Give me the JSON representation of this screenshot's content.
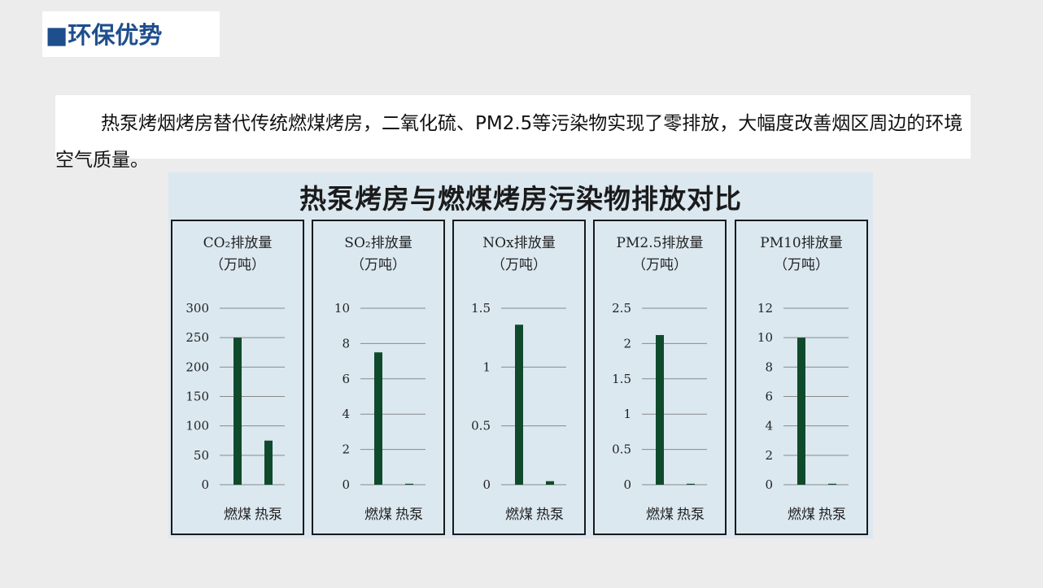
{
  "header": {
    "title": "■环保优势"
  },
  "intro": {
    "text": "热泵烤烟烤房替代传统燃煤烤房，二氧化硫、PM2.5等污染物实现了零排放，大幅度改善烟区周边的环境空气质量。"
  },
  "colors": {
    "bar": "#0f4a2c",
    "panel_bg": "#dbe8f0",
    "title_blue": "#1f4e8c"
  },
  "chart_data": [
    {
      "type": "bar",
      "title": "热泵烤房与燃煤烤房污染物排放对比",
      "panel_title": "CO₂排放量",
      "unit": "（万吨）",
      "categories": [
        "燃煤",
        "热泵"
      ],
      "values": [
        250,
        75
      ],
      "ylim": [
        0,
        300
      ],
      "yticks": [
        "0",
        "50",
        "100",
        "150",
        "200",
        "250",
        "300"
      ],
      "ytick_values": [
        0,
        50,
        100,
        150,
        200,
        250,
        300
      ]
    },
    {
      "type": "bar",
      "panel_title": "SO₂排放量",
      "unit": "（万吨）",
      "categories": [
        "燃煤",
        "热泵"
      ],
      "values": [
        7.5,
        0
      ],
      "ylim": [
        0,
        10
      ],
      "yticks": [
        "0",
        "2",
        "4",
        "6",
        "8",
        "10"
      ],
      "ytick_values": [
        0,
        2,
        4,
        6,
        8,
        10
      ]
    },
    {
      "type": "bar",
      "panel_title": "NOx排放量",
      "unit": "（万吨）",
      "categories": [
        "燃煤",
        "热泵"
      ],
      "values": [
        1.36,
        0.03
      ],
      "ylim": [
        0,
        1.5
      ],
      "yticks": [
        "0",
        "0.5",
        "1",
        "1.5"
      ],
      "ytick_values": [
        0,
        0.5,
        1,
        1.5
      ]
    },
    {
      "type": "bar",
      "panel_title": "PM2.5排放量",
      "unit": "（万吨）",
      "categories": [
        "燃煤",
        "热泵"
      ],
      "values": [
        2.12,
        0
      ],
      "ylim": [
        0,
        2.5
      ],
      "yticks": [
        "0",
        "0.5",
        "1",
        "1.5",
        "2",
        "2.5"
      ],
      "ytick_values": [
        0,
        0.5,
        1,
        1.5,
        2,
        2.5
      ]
    },
    {
      "type": "bar",
      "panel_title": "PM10排放量",
      "unit": "（万吨）",
      "categories": [
        "燃煤",
        "热泵"
      ],
      "values": [
        10,
        0
      ],
      "ylim": [
        0,
        12
      ],
      "yticks": [
        "0",
        "2",
        "4",
        "6",
        "8",
        "10",
        "12"
      ],
      "ytick_values": [
        0,
        2,
        4,
        6,
        8,
        10,
        12
      ]
    }
  ]
}
